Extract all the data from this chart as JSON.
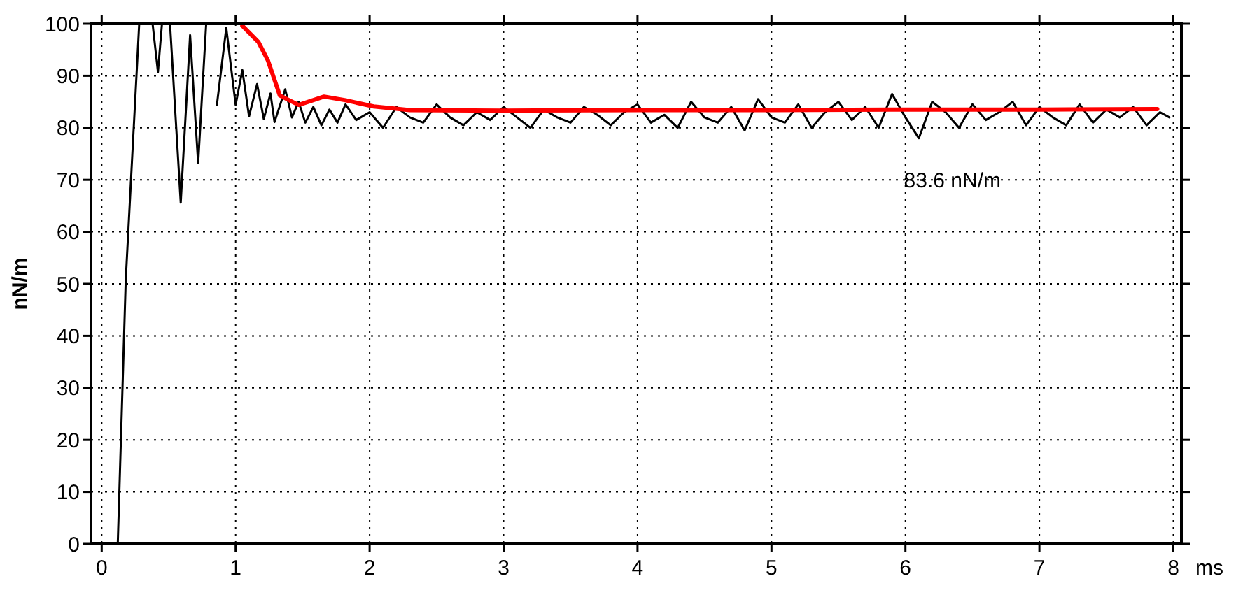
{
  "chart_data": {
    "type": "line",
    "xlabel": "ms",
    "ylabel": "nN/m",
    "xlim": [
      -0.08,
      8.06
    ],
    "ylim": [
      0,
      100
    ],
    "xticks": [
      0,
      1,
      2,
      3,
      4,
      5,
      6,
      7,
      8
    ],
    "yticks": [
      0,
      10,
      20,
      30,
      40,
      50,
      60,
      70,
      80,
      90,
      100
    ],
    "grid": true,
    "marker": "none",
    "line_style": "solid",
    "annotations": [
      "83.6 nN/m"
    ],
    "series": [
      {
        "color": "#000000",
        "x": [
          0.12,
          0.18,
          0.28,
          0.33,
          0.38,
          0.42,
          0.45,
          0.48,
          0.51,
          0.59,
          0.66,
          0.72,
          0.78,
          0.82,
          0.86,
          0.93,
          1.0,
          1.05,
          1.1,
          1.16,
          1.21,
          1.26,
          1.29,
          1.37,
          1.42,
          1.47,
          1.52,
          1.58,
          1.64,
          1.7,
          1.76,
          1.82,
          1.9,
          2.0,
          2.1,
          2.2,
          2.3,
          2.4,
          2.5,
          2.6,
          2.7,
          2.8,
          2.9,
          3.0,
          3.1,
          3.2,
          3.3,
          3.4,
          3.5,
          3.6,
          3.7,
          3.8,
          3.9,
          4.0,
          4.1,
          4.2,
          4.3,
          4.4,
          4.5,
          4.6,
          4.7,
          4.8,
          4.9,
          5.0,
          5.1,
          5.2,
          5.3,
          5.4,
          5.5,
          5.6,
          5.7,
          5.8,
          5.9,
          6.0,
          6.1,
          6.2,
          6.3,
          6.4,
          6.5,
          6.6,
          6.7,
          6.8,
          6.9,
          7.0,
          7.1,
          7.2,
          7.3,
          7.4,
          7.5,
          7.6,
          7.7,
          7.8,
          7.9,
          7.97
        ],
        "values": [
          0,
          51,
          100,
          null,
          100,
          90.7,
          100,
          null,
          100,
          65.6,
          97.8,
          73.2,
          100,
          null,
          84.4,
          99.2,
          84.4,
          91.1,
          82.2,
          88.4,
          81.7,
          86.6,
          81.1,
          87.4,
          82,
          85,
          81,
          84,
          80.5,
          83.5,
          81,
          84.5,
          81.5,
          83,
          80,
          84,
          82,
          81,
          84.5,
          82,
          80.5,
          83,
          81.5,
          84,
          82,
          80,
          83.5,
          82,
          81,
          84,
          82.5,
          80.5,
          83,
          84.5,
          81,
          82.5,
          80,
          85,
          82,
          81,
          84,
          79.5,
          85.5,
          82,
          81,
          84.5,
          80,
          83,
          85,
          81.5,
          84,
          80,
          86.5,
          82,
          78,
          85,
          83,
          80,
          84.5,
          81.5,
          83,
          85,
          80.5,
          84,
          82,
          80.5,
          84.5,
          81,
          83.5,
          82,
          84,
          80.5,
          83,
          82
        ]
      },
      {
        "color": "#ff0000",
        "x": [
          1.05,
          1.17,
          1.24,
          1.33,
          1.47,
          1.66,
          1.82,
          2.03,
          2.3,
          3.0,
          4.0,
          5.0,
          6.0,
          7.0,
          7.88
        ],
        "values": [
          99.6,
          96.5,
          93,
          86.2,
          84.4,
          86,
          85.3,
          84.1,
          83.4,
          83.3,
          83.4,
          83.4,
          83.5,
          83.5,
          83.6
        ]
      }
    ]
  }
}
